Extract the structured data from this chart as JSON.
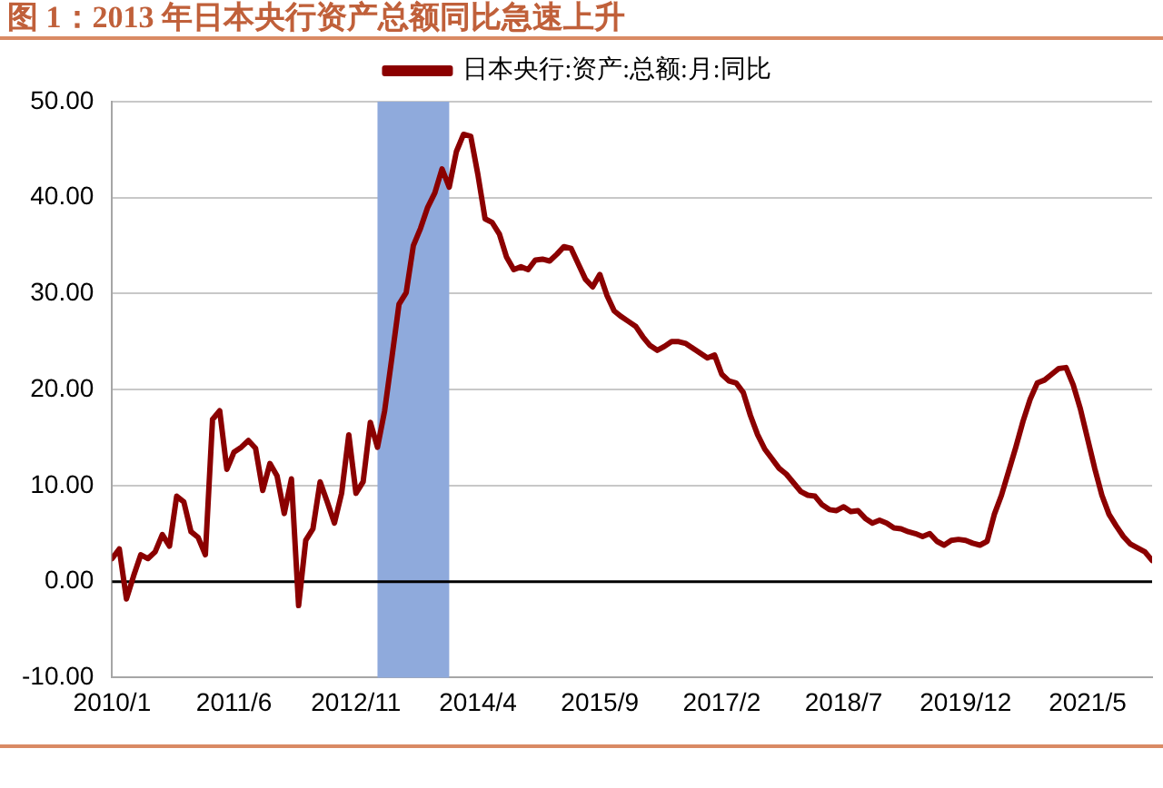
{
  "chart_data": {
    "type": "line",
    "title": "图 1：2013 年日本央行资产总额同比急速上升",
    "x": [
      "2010-01",
      "2010-02",
      "2010-03",
      "2010-04",
      "2010-05",
      "2010-06",
      "2010-07",
      "2010-08",
      "2010-09",
      "2010-10",
      "2010-11",
      "2010-12",
      "2011-01",
      "2011-02",
      "2011-03",
      "2011-04",
      "2011-05",
      "2011-06",
      "2011-07",
      "2011-08",
      "2011-09",
      "2011-10",
      "2011-11",
      "2011-12",
      "2012-01",
      "2012-02",
      "2012-03",
      "2012-04",
      "2012-05",
      "2012-06",
      "2012-07",
      "2012-08",
      "2012-09",
      "2012-10",
      "2012-11",
      "2012-12",
      "2013-01",
      "2013-02",
      "2013-03",
      "2013-04",
      "2013-05",
      "2013-06",
      "2013-07",
      "2013-08",
      "2013-09",
      "2013-10",
      "2013-11",
      "2013-12",
      "2014-01",
      "2014-02",
      "2014-03",
      "2014-04",
      "2014-05",
      "2014-06",
      "2014-07",
      "2014-08",
      "2014-09",
      "2014-10",
      "2014-11",
      "2014-12",
      "2015-01",
      "2015-02",
      "2015-03",
      "2015-04",
      "2015-05",
      "2015-06",
      "2015-07",
      "2015-08",
      "2015-09",
      "2015-10",
      "2015-11",
      "2015-12",
      "2016-01",
      "2016-02",
      "2016-03",
      "2016-04",
      "2016-05",
      "2016-06",
      "2016-07",
      "2016-08",
      "2016-09",
      "2016-10",
      "2016-11",
      "2016-12",
      "2017-01",
      "2017-02",
      "2017-03",
      "2017-04",
      "2017-05",
      "2017-06",
      "2017-07",
      "2017-08",
      "2017-09",
      "2017-10",
      "2017-11",
      "2017-12",
      "2018-01",
      "2018-02",
      "2018-03",
      "2018-04",
      "2018-05",
      "2018-06",
      "2018-07",
      "2018-08",
      "2018-09",
      "2018-10",
      "2018-11",
      "2018-12",
      "2019-01",
      "2019-02",
      "2019-03",
      "2019-04",
      "2019-05",
      "2019-06",
      "2019-07",
      "2019-08",
      "2019-09",
      "2019-10",
      "2019-11",
      "2019-12",
      "2020-01",
      "2020-02",
      "2020-03",
      "2020-04",
      "2020-05",
      "2020-06",
      "2020-07",
      "2020-08",
      "2020-09",
      "2020-10",
      "2020-11",
      "2020-12",
      "2021-01",
      "2021-02",
      "2021-03",
      "2021-04",
      "2021-05",
      "2021-06",
      "2021-07",
      "2021-08",
      "2021-09",
      "2021-10",
      "2021-11",
      "2021-12",
      "2022-01",
      "2022-02"
    ],
    "series": [
      {
        "name": "日本央行:资产:总额:月:同比",
        "color": "#8b0000",
        "values": [
          2.4,
          3.4,
          -1.8,
          0.6,
          2.8,
          2.4,
          3.1,
          4.9,
          3.7,
          8.9,
          8.3,
          5.2,
          4.6,
          2.8,
          16.9,
          17.8,
          11.7,
          13.5,
          14.0,
          14.7,
          13.9,
          9.5,
          12.3,
          11.0,
          7.1,
          10.7,
          -2.5,
          4.3,
          5.5,
          10.4,
          8.3,
          6.1,
          9.2,
          15.3,
          9.2,
          10.4,
          16.6,
          14.0,
          17.8,
          23.3,
          28.9,
          30.1,
          35.0,
          36.8,
          39.0,
          40.5,
          43.0,
          41.1,
          44.8,
          46.6,
          46.4,
          42.4,
          37.8,
          37.4,
          36.2,
          33.8,
          32.5,
          32.8,
          32.5,
          33.5,
          33.6,
          33.4,
          34.1,
          34.9,
          34.7,
          33.1,
          31.5,
          30.7,
          32.0,
          29.8,
          28.2,
          27.6,
          27.1,
          26.6,
          25.5,
          24.6,
          24.1,
          24.5,
          25.0,
          25.0,
          24.8,
          24.3,
          23.8,
          23.3,
          23.6,
          21.6,
          20.9,
          20.7,
          19.7,
          17.3,
          15.3,
          13.8,
          12.8,
          11.8,
          11.2,
          10.3,
          9.4,
          9.0,
          8.9,
          8.0,
          7.5,
          7.4,
          7.8,
          7.3,
          7.4,
          6.6,
          6.1,
          6.4,
          6.1,
          5.6,
          5.5,
          5.2,
          5.0,
          4.7,
          5.0,
          4.2,
          3.8,
          4.3,
          4.4,
          4.3,
          4.0,
          3.8,
          4.2,
          7.0,
          9.0,
          11.5,
          14.0,
          16.7,
          19.0,
          20.7,
          21.0,
          21.6,
          22.2,
          22.3,
          20.5,
          18.0,
          14.9,
          11.8,
          9.0,
          7.0,
          5.8,
          4.7,
          3.9,
          3.5,
          3.1,
          2.2
        ]
      }
    ],
    "xlim": [
      "2010-01",
      "2022-02"
    ],
    "xticks": [
      {
        "value": "2010-01",
        "label": "2010/1"
      },
      {
        "value": "2011-06",
        "label": "2011/6"
      },
      {
        "value": "2012-11",
        "label": "2012/11"
      },
      {
        "value": "2014-04",
        "label": "2014/4"
      },
      {
        "value": "2015-09",
        "label": "2015/9"
      },
      {
        "value": "2017-02",
        "label": "2017/2"
      },
      {
        "value": "2018-07",
        "label": "2018/7"
      },
      {
        "value": "2019-12",
        "label": "2019/12"
      },
      {
        "value": "2021-05",
        "label": "2021/5"
      }
    ],
    "ylim": [
      -10,
      50
    ],
    "yticks": [
      {
        "value": -10,
        "label": "-10.00"
      },
      {
        "value": 0,
        "label": "0.00"
      },
      {
        "value": 10,
        "label": "10.00"
      },
      {
        "value": 20,
        "label": "20.00"
      },
      {
        "value": 30,
        "label": "30.00"
      },
      {
        "value": 40,
        "label": "40.00"
      },
      {
        "value": 50,
        "label": "50.00"
      }
    ],
    "grid": "y",
    "legend": "top",
    "line_style": "solid",
    "bands": [
      {
        "axis": "x",
        "from": "2013-02",
        "to": "2013-12",
        "color": "#8faadc"
      }
    ],
    "ref_lines": [
      {
        "axis": "y",
        "value": 0,
        "color": "#000000"
      }
    ]
  }
}
